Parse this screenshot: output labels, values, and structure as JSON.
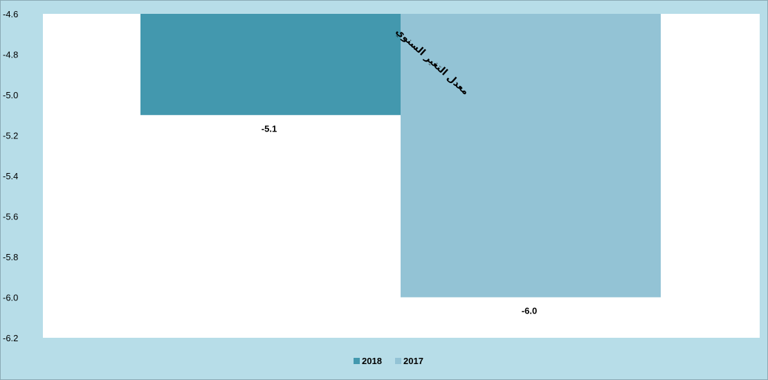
{
  "chart_data": {
    "type": "bar",
    "series": [
      {
        "name": "2018",
        "value": -5.1,
        "label": "-5.1",
        "color": "#4398ae"
      },
      {
        "name": "2017",
        "value": -6.0,
        "label": "-6.0",
        "color": "#93c3d5"
      }
    ],
    "y_ticks": [
      "-4.6",
      "-4.8",
      "-5.0",
      "-5.2",
      "-5.4",
      "-5.6",
      "-5.8",
      "-6.0",
      "-6.2"
    ],
    "ylim": [
      -6.2,
      -4.6
    ],
    "annotation": "معدل التغير السنوي",
    "legend_position": "bottom",
    "grid": false,
    "background_color": "#b7dde8",
    "plot_background": "#ffffff"
  }
}
